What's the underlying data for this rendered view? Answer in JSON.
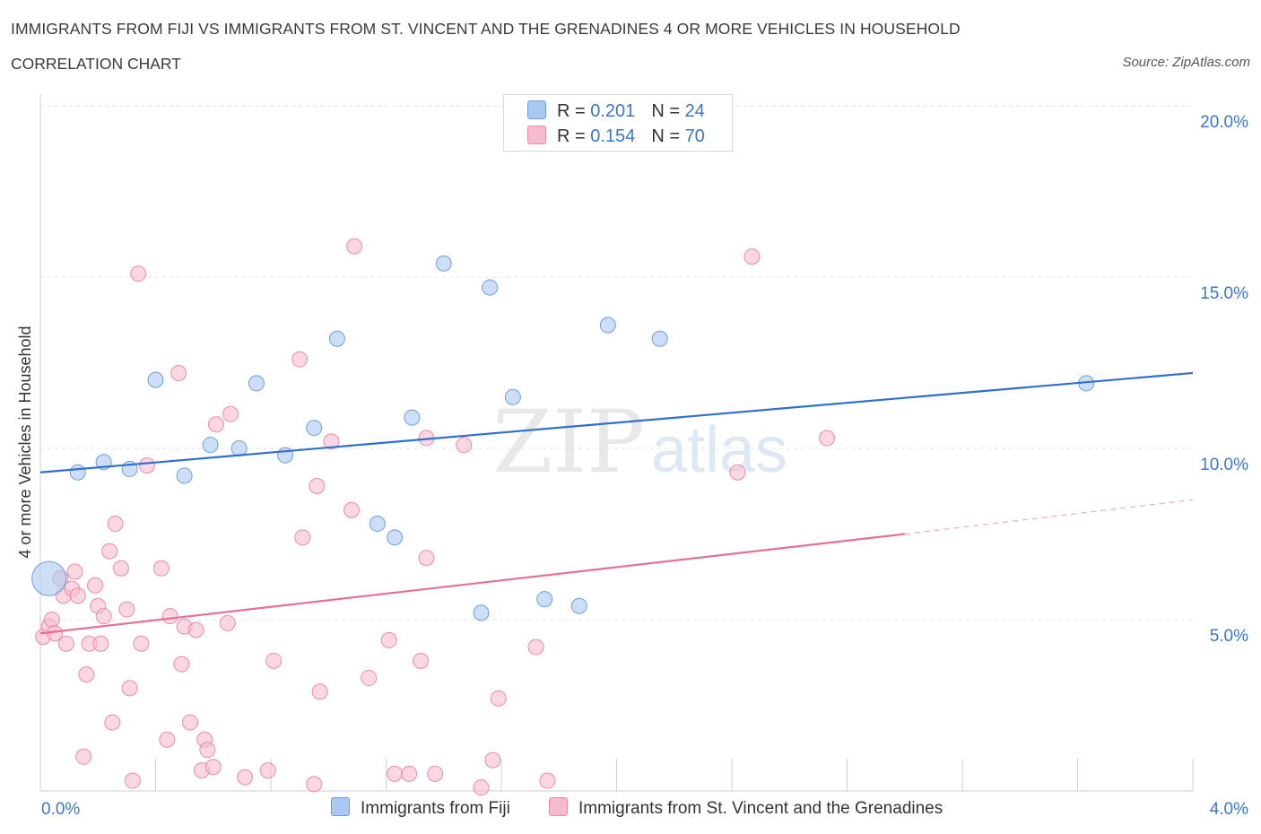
{
  "header": {
    "title": "IMMIGRANTS FROM FIJI VS IMMIGRANTS FROM ST. VINCENT AND THE GRENADINES 4 OR MORE VEHICLES IN HOUSEHOLD",
    "subtitle": "CORRELATION CHART",
    "source": "Source: ZipAtlas.com"
  },
  "watermark": {
    "zip": "ZIP",
    "atlas": "atlas"
  },
  "legend": {
    "fiji": {
      "r_label": "R = ",
      "r_value": "0.201",
      "n_label": "N = ",
      "n_value": "24",
      "color": "#aac9f2"
    },
    "svg": {
      "r_label": "R = ",
      "r_value": "0.154",
      "n_label": "N = ",
      "n_value": "70",
      "color": "#f6bccd"
    }
  },
  "chart_data": {
    "type": "scatter",
    "title": "IMMIGRANTS FROM FIJI VS IMMIGRANTS FROM ST. VINCENT AND THE GRENADINES 4 OR MORE VEHICLES IN HOUSEHOLD",
    "xlabel": "",
    "ylabel": "4 or more Vehicles in Household",
    "xlim": [
      0,
      4
    ],
    "ylim": [
      0,
      20
    ],
    "x_tick_labels": [
      "0.0%",
      "4.0%"
    ],
    "y_ticks": [
      5,
      10,
      15,
      20
    ],
    "y_tick_labels": [
      "5.0%",
      "10.0%",
      "15.0%",
      "20.0%"
    ],
    "grid": true,
    "legend_position": "top-center",
    "series": [
      {
        "name": "Immigrants from Fiji",
        "color": "#aac9f2",
        "stroke": "#6f9fd8",
        "trend_color": "#2f6fcf",
        "r": 0.201,
        "n": 24,
        "trend": {
          "x": [
            0,
            4.0
          ],
          "y": [
            9.3,
            12.2
          ]
        },
        "points": [
          {
            "x": 0.03,
            "y": 6.2,
            "big": true
          },
          {
            "x": 0.13,
            "y": 9.3
          },
          {
            "x": 0.22,
            "y": 9.6
          },
          {
            "x": 0.31,
            "y": 9.4
          },
          {
            "x": 0.4,
            "y": 12.0
          },
          {
            "x": 0.5,
            "y": 9.2
          },
          {
            "x": 0.59,
            "y": 10.1
          },
          {
            "x": 0.69,
            "y": 10.0
          },
          {
            "x": 0.75,
            "y": 11.9
          },
          {
            "x": 0.85,
            "y": 9.8
          },
          {
            "x": 0.95,
            "y": 10.6
          },
          {
            "x": 1.03,
            "y": 13.2
          },
          {
            "x": 1.17,
            "y": 7.8
          },
          {
            "x": 1.23,
            "y": 7.4
          },
          {
            "x": 1.29,
            "y": 10.9
          },
          {
            "x": 1.4,
            "y": 15.4
          },
          {
            "x": 1.53,
            "y": 5.2
          },
          {
            "x": 1.56,
            "y": 14.7
          },
          {
            "x": 1.64,
            "y": 11.5
          },
          {
            "x": 1.75,
            "y": 5.6
          },
          {
            "x": 1.87,
            "y": 5.4
          },
          {
            "x": 1.97,
            "y": 13.6
          },
          {
            "x": 2.15,
            "y": 13.2
          },
          {
            "x": 3.63,
            "y": 11.9
          }
        ]
      },
      {
        "name": "Immigrants from St. Vincent and the Grenadines",
        "color": "#f6bccd",
        "stroke": "#e98ca9",
        "trend_color": "#e5709a",
        "r": 0.154,
        "n": 70,
        "trend": {
          "x": [
            0,
            3.0
          ],
          "y": [
            4.6,
            7.5
          ]
        },
        "trend_dashed": {
          "x": [
            3.0,
            4.0
          ],
          "y": [
            7.5,
            8.5
          ]
        },
        "points": [
          {
            "x": 0.01,
            "y": 4.5
          },
          {
            "x": 0.03,
            "y": 4.8
          },
          {
            "x": 0.04,
            "y": 5.0
          },
          {
            "x": 0.05,
            "y": 4.6
          },
          {
            "x": 0.07,
            "y": 6.2
          },
          {
            "x": 0.08,
            "y": 5.7
          },
          {
            "x": 0.09,
            "y": 4.3
          },
          {
            "x": 0.11,
            "y": 5.9
          },
          {
            "x": 0.12,
            "y": 6.4
          },
          {
            "x": 0.13,
            "y": 5.7
          },
          {
            "x": 0.15,
            "y": 1.0
          },
          {
            "x": 0.16,
            "y": 3.4
          },
          {
            "x": 0.17,
            "y": 4.3
          },
          {
            "x": 0.19,
            "y": 6.0
          },
          {
            "x": 0.2,
            "y": 5.4
          },
          {
            "x": 0.21,
            "y": 4.3
          },
          {
            "x": 0.22,
            "y": 5.1
          },
          {
            "x": 0.24,
            "y": 7.0
          },
          {
            "x": 0.25,
            "y": 2.0
          },
          {
            "x": 0.26,
            "y": 7.8
          },
          {
            "x": 0.28,
            "y": 6.5
          },
          {
            "x": 0.3,
            "y": 5.3
          },
          {
            "x": 0.31,
            "y": 3.0
          },
          {
            "x": 0.32,
            "y": 0.3
          },
          {
            "x": 0.34,
            "y": 15.1
          },
          {
            "x": 0.35,
            "y": 4.3
          },
          {
            "x": 0.37,
            "y": 9.5
          },
          {
            "x": 0.42,
            "y": 6.5
          },
          {
            "x": 0.44,
            "y": 1.5
          },
          {
            "x": 0.45,
            "y": 5.1
          },
          {
            "x": 0.48,
            "y": 12.2
          },
          {
            "x": 0.49,
            "y": 3.7
          },
          {
            "x": 0.5,
            "y": 4.8
          },
          {
            "x": 0.52,
            "y": 2.0
          },
          {
            "x": 0.54,
            "y": 4.7
          },
          {
            "x": 0.56,
            "y": 0.6
          },
          {
            "x": 0.57,
            "y": 1.5
          },
          {
            "x": 0.58,
            "y": 1.2
          },
          {
            "x": 0.6,
            "y": 0.7
          },
          {
            "x": 0.61,
            "y": 10.7
          },
          {
            "x": 0.65,
            "y": 4.9
          },
          {
            "x": 0.66,
            "y": 11.0
          },
          {
            "x": 0.71,
            "y": 0.4
          },
          {
            "x": 0.79,
            "y": 0.6
          },
          {
            "x": 0.81,
            "y": 3.8
          },
          {
            "x": 0.9,
            "y": 12.6
          },
          {
            "x": 0.91,
            "y": 7.4
          },
          {
            "x": 0.95,
            "y": 0.2
          },
          {
            "x": 0.96,
            "y": 8.9
          },
          {
            "x": 0.97,
            "y": 2.9
          },
          {
            "x": 1.01,
            "y": 10.2
          },
          {
            "x": 1.08,
            "y": 8.2
          },
          {
            "x": 1.09,
            "y": 15.9
          },
          {
            "x": 1.14,
            "y": 3.3
          },
          {
            "x": 1.21,
            "y": 4.4
          },
          {
            "x": 1.23,
            "y": 0.5
          },
          {
            "x": 1.28,
            "y": 0.5
          },
          {
            "x": 1.32,
            "y": 3.8
          },
          {
            "x": 1.34,
            "y": 10.3
          },
          {
            "x": 1.34,
            "y": 6.8
          },
          {
            "x": 1.37,
            "y": 0.5
          },
          {
            "x": 1.47,
            "y": 10.1
          },
          {
            "x": 1.53,
            "y": 0.1
          },
          {
            "x": 1.57,
            "y": 0.9
          },
          {
            "x": 1.59,
            "y": 2.7
          },
          {
            "x": 1.72,
            "y": 4.2
          },
          {
            "x": 1.76,
            "y": 0.3
          },
          {
            "x": 2.42,
            "y": 9.3
          },
          {
            "x": 2.47,
            "y": 15.6
          },
          {
            "x": 2.73,
            "y": 10.3
          }
        ]
      }
    ]
  }
}
